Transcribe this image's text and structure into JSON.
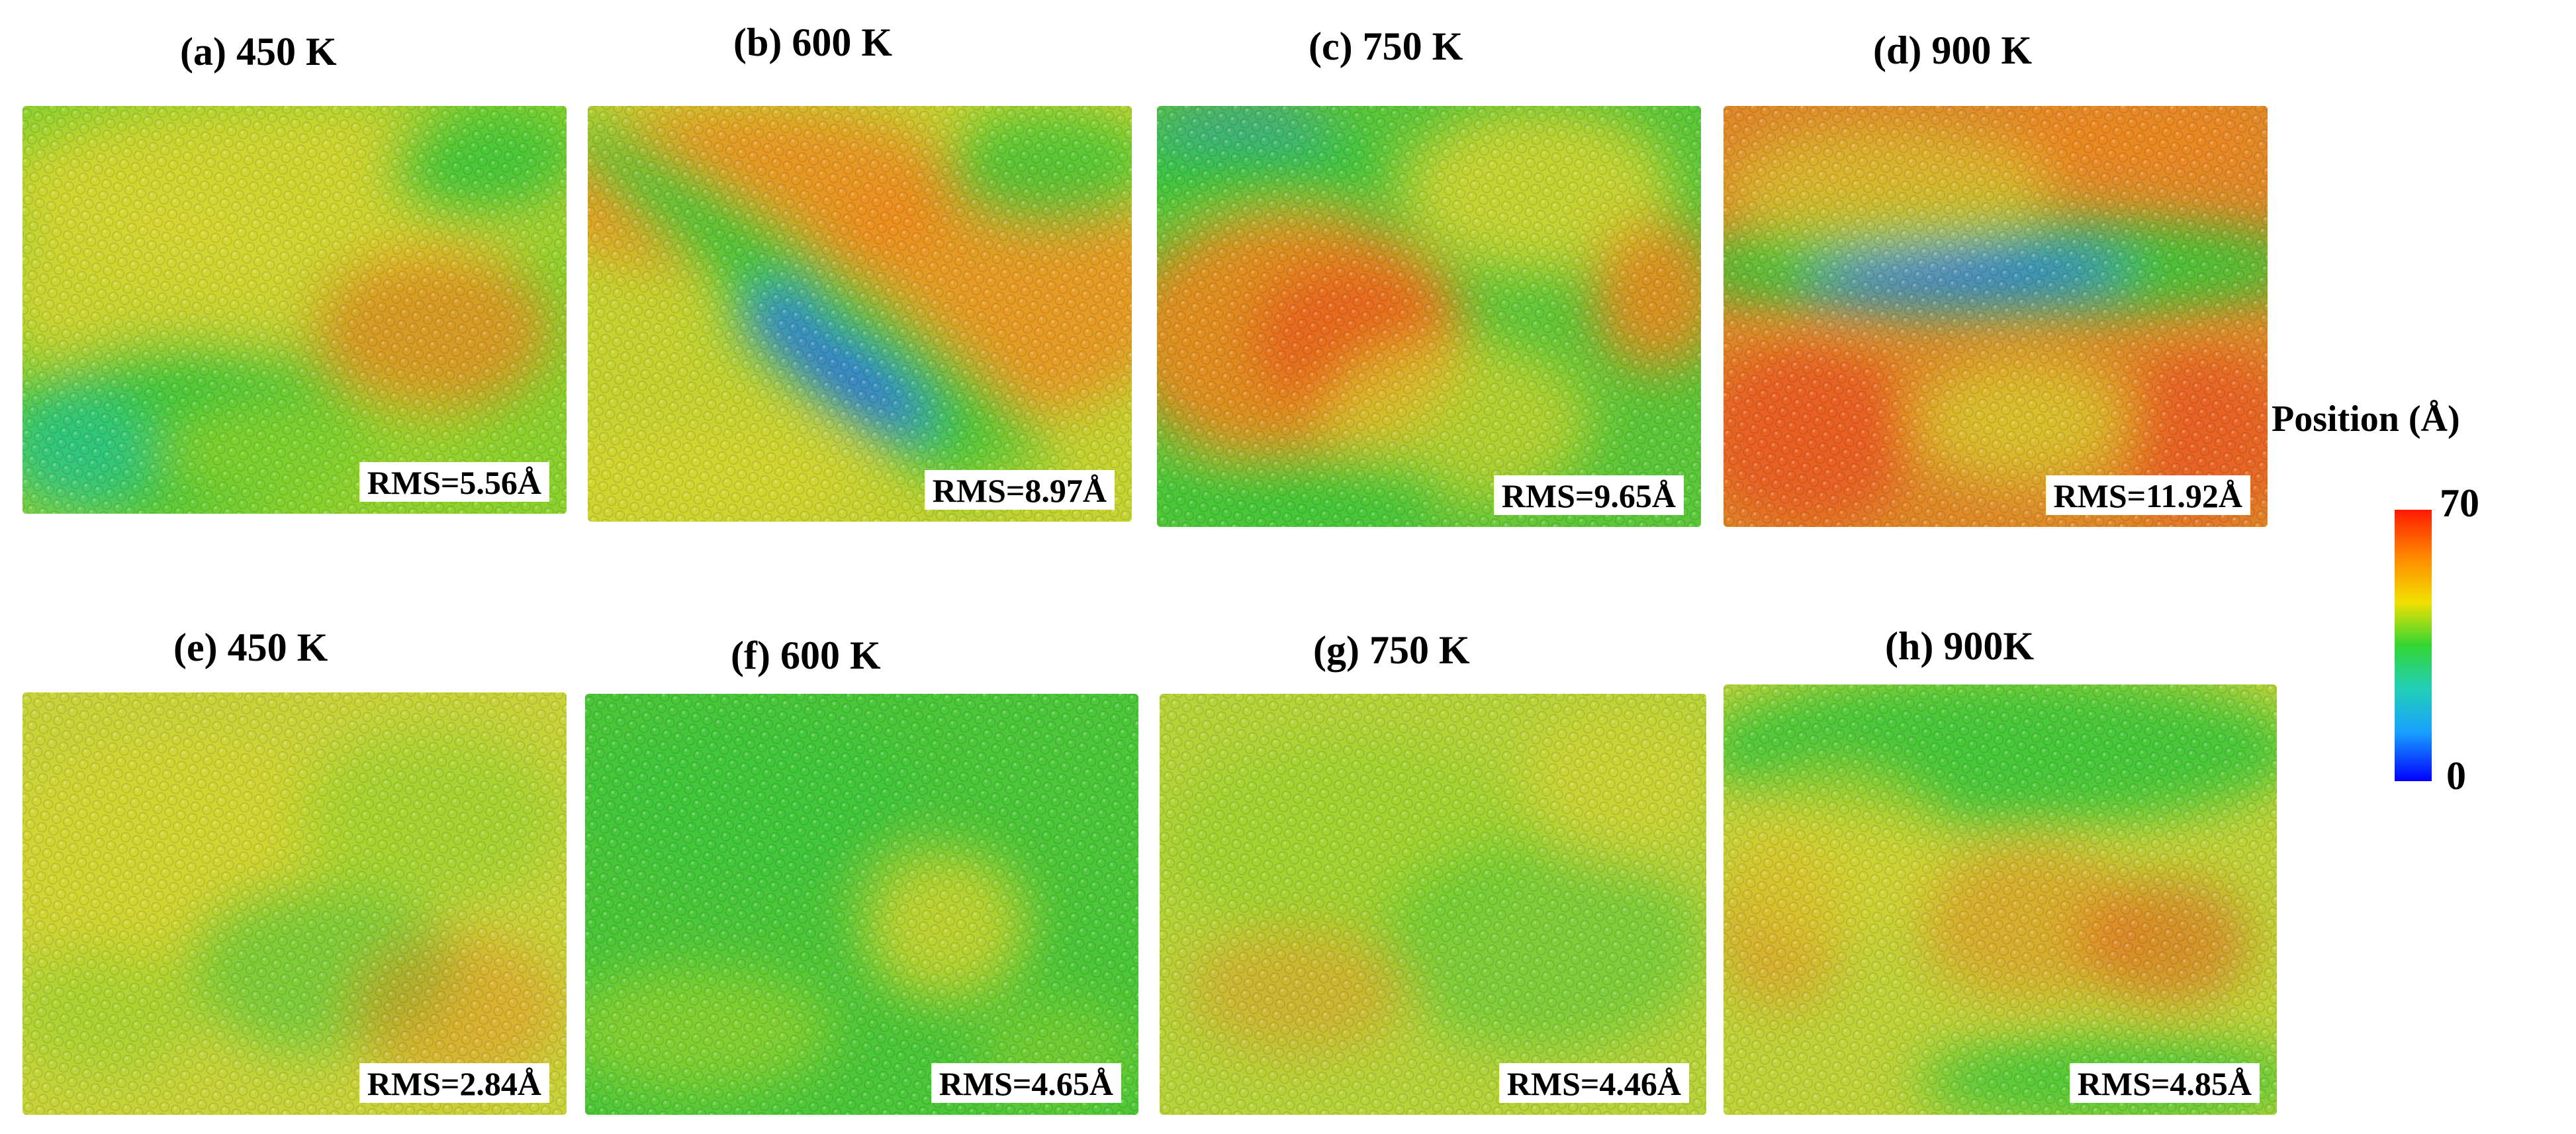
{
  "panels": [
    {
      "title": "(a) 450 K",
      "rms": "RMS=5.56Å"
    },
    {
      "title": "(b) 600 K",
      "rms": "RMS=8.97Å"
    },
    {
      "title": "(c) 750 K",
      "rms": "RMS=9.65Å"
    },
    {
      "title": "(d) 900 K",
      "rms": "RMS=11.92Å"
    },
    {
      "title": "(e) 450 K",
      "rms": "RMS=2.84Å"
    },
    {
      "title": "(f) 600 K",
      "rms": "RMS=4.65Å"
    },
    {
      "title": "(g) 750 K",
      "rms": "RMS=4.46Å"
    },
    {
      "title": "(h) 900K",
      "rms": "RMS=4.85Å"
    }
  ],
  "colorbar": {
    "title": "Position (Å)",
    "max_label": "70",
    "min_label": "0",
    "colors": [
      "#ff1a00",
      "#ff8c00",
      "#f2e000",
      "#33d633",
      "#22d0b8",
      "#18a0ff",
      "#0000ff"
    ]
  }
}
